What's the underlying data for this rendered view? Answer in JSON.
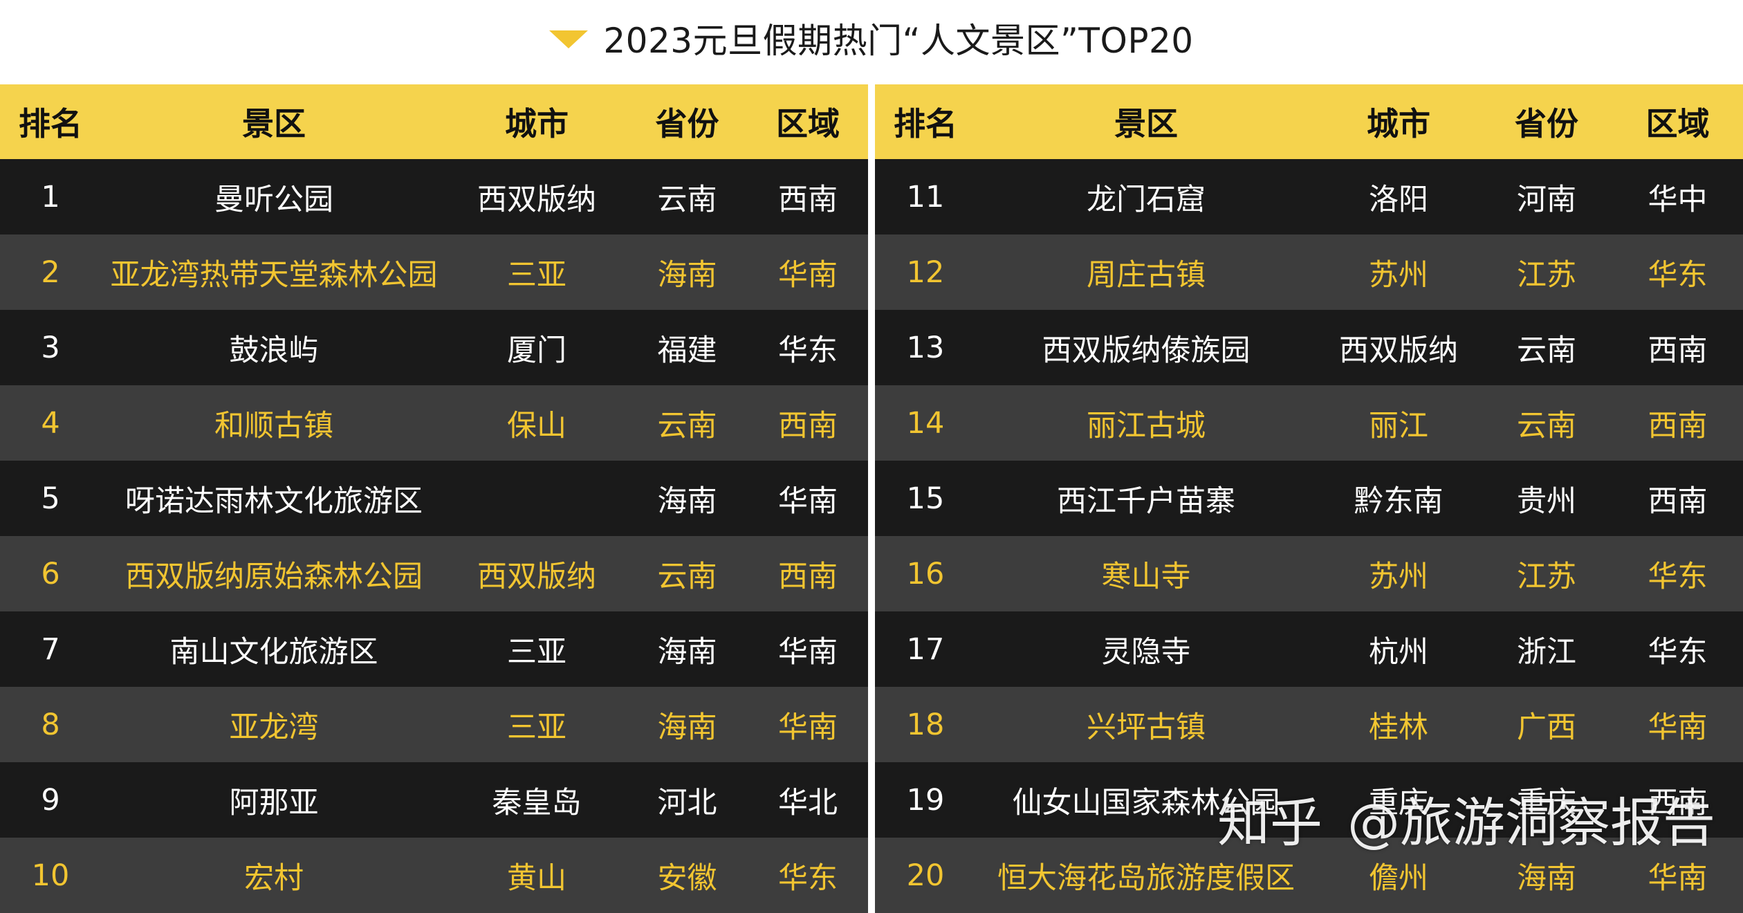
{
  "title": "2023元旦假期热门“人文景区”TOP20",
  "headers": {
    "rank": "排名",
    "spot": "景区",
    "city": "城市",
    "province": "省份",
    "region": "区域"
  },
  "rows": [
    {
      "rank": "1",
      "spot": "曼听公园",
      "city": "西双版纳",
      "province": "云南",
      "region": "西南"
    },
    {
      "rank": "2",
      "spot": "亚龙湾热带天堂森林公园",
      "city": "三亚",
      "province": "海南",
      "region": "华南"
    },
    {
      "rank": "3",
      "spot": "鼓浪屿",
      "city": "厦门",
      "province": "福建",
      "region": "华东"
    },
    {
      "rank": "4",
      "spot": "和顺古镇",
      "city": "保山",
      "province": "云南",
      "region": "西南"
    },
    {
      "rank": "5",
      "spot": "呀诺达雨林文化旅游区",
      "city": "",
      "province": "海南",
      "region": "华南"
    },
    {
      "rank": "6",
      "spot": "西双版纳原始森林公园",
      "city": "西双版纳",
      "province": "云南",
      "region": "西南"
    },
    {
      "rank": "7",
      "spot": "南山文化旅游区",
      "city": "三亚",
      "province": "海南",
      "region": "华南"
    },
    {
      "rank": "8",
      "spot": "亚龙湾",
      "city": "三亚",
      "province": "海南",
      "region": "华南"
    },
    {
      "rank": "9",
      "spot": "阿那亚",
      "city": "秦皇岛",
      "province": "河北",
      "region": "华北"
    },
    {
      "rank": "10",
      "spot": "宏村",
      "city": "黄山",
      "province": "安徽",
      "region": "华东"
    },
    {
      "rank": "11",
      "spot": "龙门石窟",
      "city": "洛阳",
      "province": "河南",
      "region": "华中"
    },
    {
      "rank": "12",
      "spot": "周庄古镇",
      "city": "苏州",
      "province": "江苏",
      "region": "华东"
    },
    {
      "rank": "13",
      "spot": "西双版纳傣族园",
      "city": "西双版纳",
      "province": "云南",
      "region": "西南"
    },
    {
      "rank": "14",
      "spot": "丽江古城",
      "city": "丽江",
      "province": "云南",
      "region": "西南"
    },
    {
      "rank": "15",
      "spot": "西江千户苗寨",
      "city": "黔东南",
      "province": "贵州",
      "region": "西南"
    },
    {
      "rank": "16",
      "spot": "寒山寺",
      "city": "苏州",
      "province": "江苏",
      "region": "华东"
    },
    {
      "rank": "17",
      "spot": "灵隐寺",
      "city": "杭州",
      "province": "浙江",
      "region": "华东"
    },
    {
      "rank": "18",
      "spot": "兴坪古镇",
      "city": "桂林",
      "province": "广西",
      "region": "华南"
    },
    {
      "rank": "19",
      "spot": "仙女山国家森林公园",
      "city": "重庆",
      "province": "重庆",
      "region": "西南"
    },
    {
      "rank": "20",
      "spot": "恒大海花岛旅游度假区",
      "city": "儋州",
      "province": "海南",
      "region": "华南"
    }
  ],
  "watermark": {
    "platform": "知乎",
    "handle": "@旅游洞察报告"
  },
  "colors": {
    "header_bg": "#f5d34d",
    "row_dark": "#1a1a1a",
    "row_gray": "#3d3d3d",
    "highlight_text": "#f2c531",
    "normal_text": "#ffffff"
  }
}
